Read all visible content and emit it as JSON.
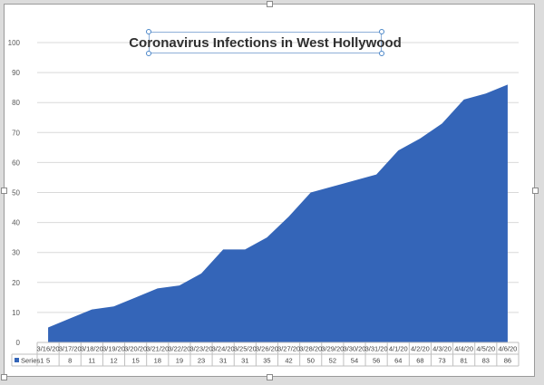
{
  "chart_data": {
    "type": "area",
    "title": "Coronavirus Infections in West Hollywood",
    "xlabel": "",
    "ylabel": "",
    "ylim": [
      0,
      100
    ],
    "yticks": [
      "0",
      "10",
      "20",
      "30",
      "40",
      "50",
      "60",
      "70",
      "80",
      "90",
      "100"
    ],
    "gridlines": true,
    "legend": "data-table",
    "categories": [
      "3/16/20",
      "3/17/20",
      "3/18/20",
      "3/19/20",
      "3/20/20",
      "3/21/20",
      "3/22/20",
      "3/23/20",
      "3/24/20",
      "3/25/20",
      "3/26/20",
      "3/27/20",
      "3/28/20",
      "3/29/20",
      "3/30/20",
      "3/31/20",
      "4/1/20",
      "4/2/20",
      "4/3/20",
      "4/4/20",
      "4/5/20",
      "4/6/20"
    ],
    "series": [
      {
        "name": "Series1",
        "color": "#3465b8",
        "values": [
          5,
          8,
          11,
          12,
          15,
          18,
          19,
          23,
          31,
          31,
          35,
          42,
          50,
          52,
          54,
          56,
          64,
          68,
          73,
          81,
          83,
          86
        ]
      }
    ]
  }
}
